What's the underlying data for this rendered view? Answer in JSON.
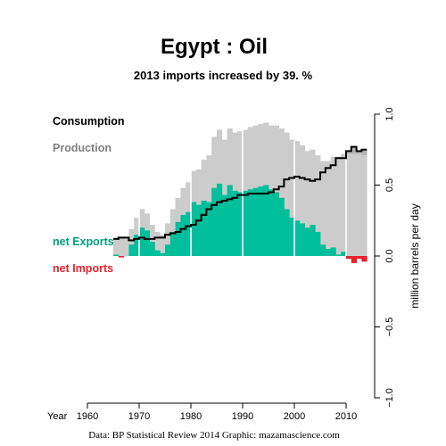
{
  "title": "Egypt :  Oil",
  "subtitle": "2013 imports increased by 39. %",
  "credit": "Data: BP Statistical Review 2014    Graphic: mazamascience.com",
  "colors": {
    "production": "#cccccc",
    "consumption_bg": "#b5b5b5",
    "consumption_line": "#000000",
    "net_exports": "#00bf9a",
    "net_imports": "#e8212b",
    "production_label": "#808080",
    "decade_marker": "#ffffff"
  },
  "chart_data": {
    "type": "area",
    "title": "Egypt :  Oil",
    "subtitle": "2013 imports increased by 39. %",
    "x_axis_label": "Year",
    "ylabel": "million barrels per day",
    "xlim": [
      1960,
      2013
    ],
    "ylim": [
      -1.0,
      1.0
    ],
    "x_ticks": [
      1960,
      1970,
      1980,
      1990,
      2000,
      2010
    ],
    "y_ticks": [
      1.0,
      0.5,
      0.0,
      -0.5,
      -1.0
    ],
    "y_tick_labels": [
      "1.0",
      "0.5",
      "0.0",
      "−0.5",
      "−1.0"
    ],
    "legend": [
      "Consumption",
      "Production",
      "net Exports",
      "net Imports"
    ],
    "years": [
      1965,
      1966,
      1967,
      1968,
      1969,
      1970,
      1971,
      1972,
      1973,
      1974,
      1975,
      1976,
      1977,
      1978,
      1979,
      1980,
      1981,
      1982,
      1983,
      1984,
      1985,
      1986,
      1987,
      1988,
      1989,
      1990,
      1991,
      1992,
      1993,
      1994,
      1995,
      1996,
      1997,
      1998,
      1999,
      2000,
      2001,
      2002,
      2003,
      2004,
      2005,
      2006,
      2007,
      2008,
      2009,
      2010,
      2011,
      2012,
      2013
    ],
    "series": [
      {
        "name": "Production",
        "values": [
          0.13,
          0.12,
          0.13,
          0.19,
          0.27,
          0.33,
          0.3,
          0.22,
          0.17,
          0.15,
          0.23,
          0.33,
          0.41,
          0.48,
          0.52,
          0.6,
          0.61,
          0.68,
          0.71,
          0.84,
          0.89,
          0.82,
          0.9,
          0.87,
          0.88,
          0.89,
          0.91,
          0.92,
          0.93,
          0.94,
          0.92,
          0.92,
          0.9,
          0.87,
          0.82,
          0.81,
          0.78,
          0.74,
          0.75,
          0.71,
          0.67,
          0.67,
          0.7,
          0.7,
          0.72,
          0.72,
          0.72,
          0.72,
          0.71
        ]
      },
      {
        "name": "Consumption",
        "values": [
          0.12,
          0.13,
          0.13,
          0.11,
          0.12,
          0.13,
          0.12,
          0.12,
          0.13,
          0.13,
          0.15,
          0.16,
          0.17,
          0.19,
          0.21,
          0.22,
          0.25,
          0.29,
          0.33,
          0.36,
          0.38,
          0.39,
          0.4,
          0.41,
          0.43,
          0.43,
          0.44,
          0.44,
          0.44,
          0.44,
          0.45,
          0.47,
          0.49,
          0.54,
          0.55,
          0.56,
          0.55,
          0.54,
          0.53,
          0.54,
          0.59,
          0.62,
          0.64,
          0.69,
          0.69,
          0.74,
          0.77,
          0.74,
          0.75
        ]
      },
      {
        "name": "Net exports / imports",
        "values": [
          0.01,
          -0.01,
          0.0,
          0.08,
          0.15,
          0.2,
          0.18,
          0.1,
          0.04,
          0.02,
          0.08,
          0.17,
          0.24,
          0.29,
          0.31,
          0.38,
          0.36,
          0.39,
          0.38,
          0.48,
          0.51,
          0.43,
          0.5,
          0.46,
          0.45,
          0.46,
          0.47,
          0.48,
          0.49,
          0.5,
          0.47,
          0.45,
          0.41,
          0.33,
          0.27,
          0.25,
          0.23,
          0.2,
          0.22,
          0.17,
          0.08,
          0.05,
          0.06,
          0.01,
          0.03,
          -0.02,
          -0.05,
          -0.02,
          -0.04
        ]
      }
    ]
  }
}
